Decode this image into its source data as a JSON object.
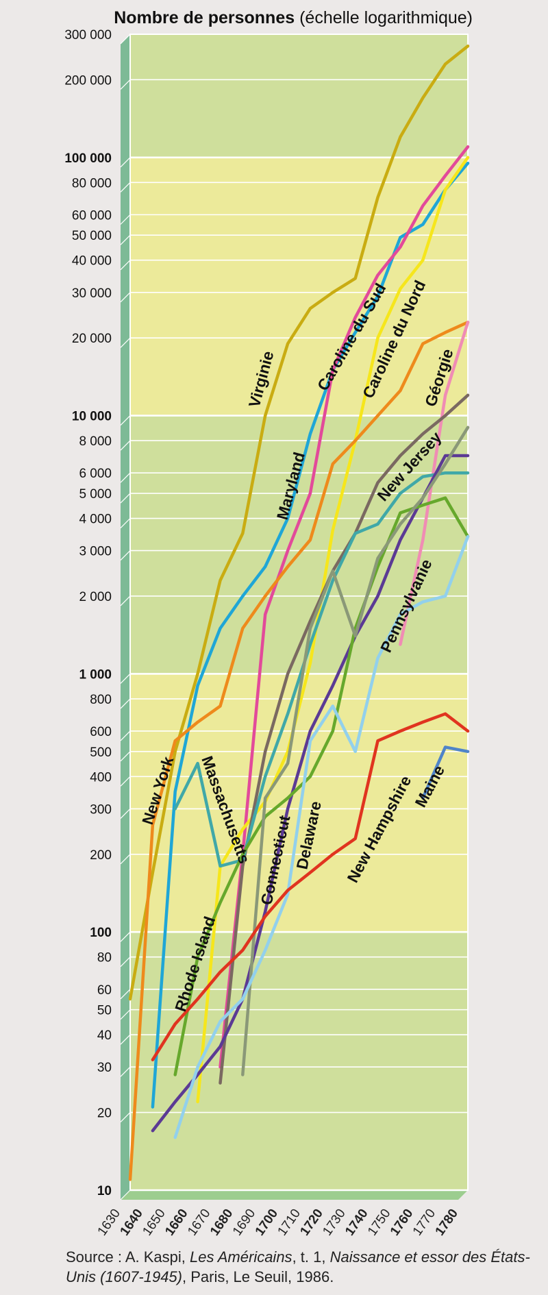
{
  "title": {
    "bold": "Nombre de personnes",
    "rest": " (échelle logarithmique)"
  },
  "source": {
    "p1": "Source : A. Kaspi, ",
    "i1": "Les Américains",
    "p2": ", t. 1, ",
    "i2": "Naissance et essor des États-Unis (1607-1945)",
    "p3": ", Paris, Le Seuil, 1986."
  },
  "colors": {
    "band_green": "#cfdf9c",
    "band_yellow": "#ecea9a",
    "side_wall": "#7dba96",
    "floor": "#9ccd8f"
  },
  "chart_data": {
    "type": "line",
    "title": "Nombre de personnes (échelle logarithmique)",
    "xlabel": "",
    "ylabel": "Nombre de personnes",
    "yscale": "log",
    "xlim": [
      1630,
      1780
    ],
    "ylim": [
      10,
      300000
    ],
    "x_ticks": [
      {
        "value": 1630,
        "label": "1630",
        "bold": false
      },
      {
        "value": 1640,
        "label": "1640",
        "bold": true
      },
      {
        "value": 1650,
        "label": "1650",
        "bold": false
      },
      {
        "value": 1660,
        "label": "1660",
        "bold": true
      },
      {
        "value": 1670,
        "label": "1670",
        "bold": false
      },
      {
        "value": 1680,
        "label": "1680",
        "bold": true
      },
      {
        "value": 1690,
        "label": "1690",
        "bold": false
      },
      {
        "value": 1700,
        "label": "1700",
        "bold": true
      },
      {
        "value": 1710,
        "label": "1710",
        "bold": false
      },
      {
        "value": 1720,
        "label": "1720",
        "bold": true
      },
      {
        "value": 1730,
        "label": "1730",
        "bold": false
      },
      {
        "value": 1740,
        "label": "1740",
        "bold": true
      },
      {
        "value": 1750,
        "label": "1750",
        "bold": false
      },
      {
        "value": 1760,
        "label": "1760",
        "bold": true
      },
      {
        "value": 1770,
        "label": "1770",
        "bold": false
      },
      {
        "value": 1780,
        "label": "1780",
        "bold": true
      }
    ],
    "y_ticks": [
      {
        "value": 10,
        "label": "10",
        "bold": true
      },
      {
        "value": 20,
        "label": "20",
        "bold": false
      },
      {
        "value": 30,
        "label": "30",
        "bold": false
      },
      {
        "value": 40,
        "label": "40",
        "bold": false
      },
      {
        "value": 50,
        "label": "50",
        "bold": false
      },
      {
        "value": 60,
        "label": "60",
        "bold": false
      },
      {
        "value": 80,
        "label": "80",
        "bold": false
      },
      {
        "value": 100,
        "label": "100",
        "bold": true
      },
      {
        "value": 200,
        "label": "200",
        "bold": false
      },
      {
        "value": 300,
        "label": "300",
        "bold": false
      },
      {
        "value": 400,
        "label": "400",
        "bold": false
      },
      {
        "value": 500,
        "label": "500",
        "bold": false
      },
      {
        "value": 600,
        "label": "600",
        "bold": false
      },
      {
        "value": 800,
        "label": "800",
        "bold": false
      },
      {
        "value": 1000,
        "label": "1 000",
        "bold": true
      },
      {
        "value": 2000,
        "label": "2 000",
        "bold": false
      },
      {
        "value": 3000,
        "label": "3 000",
        "bold": false
      },
      {
        "value": 4000,
        "label": "4 000",
        "bold": false
      },
      {
        "value": 5000,
        "label": "5 000",
        "bold": false
      },
      {
        "value": 6000,
        "label": "6 000",
        "bold": false
      },
      {
        "value": 8000,
        "label": "8 000",
        "bold": false
      },
      {
        "value": 10000,
        "label": "10 000",
        "bold": true
      },
      {
        "value": 20000,
        "label": "20 000",
        "bold": false
      },
      {
        "value": 30000,
        "label": "30 000",
        "bold": false
      },
      {
        "value": 40000,
        "label": "40 000",
        "bold": false
      },
      {
        "value": 50000,
        "label": "50 000",
        "bold": false
      },
      {
        "value": 60000,
        "label": "60 000",
        "bold": false
      },
      {
        "value": 80000,
        "label": "80 000",
        "bold": false
      },
      {
        "value": 100000,
        "label": "100 000",
        "bold": true
      },
      {
        "value": 200000,
        "label": "200 000",
        "bold": false
      },
      {
        "value": 300000,
        "label": "300 000",
        "bold": false
      }
    ],
    "series": [
      {
        "name": "Virginie",
        "color": "#c9ac12",
        "x": [
          1630,
          1640,
          1650,
          1660,
          1670,
          1680,
          1690,
          1700,
          1710,
          1720,
          1730,
          1740,
          1750,
          1760,
          1770,
          1780
        ],
        "values": [
          55,
          170,
          500,
          1000,
          2300,
          3500,
          10000,
          19000,
          26000,
          30000,
          34000,
          70000,
          120000,
          170000,
          230000,
          270000
        ]
      },
      {
        "name": "Maryland",
        "color": "#1fa6d6",
        "x": [
          1640,
          1650,
          1660,
          1670,
          1680,
          1690,
          1700,
          1710,
          1720,
          1730,
          1740,
          1750,
          1760,
          1770,
          1780
        ],
        "values": [
          21,
          350,
          900,
          1500,
          2000,
          2600,
          4000,
          8500,
          15000,
          21000,
          29000,
          49000,
          55000,
          75000,
          95000
        ]
      },
      {
        "name": "Caroline du Sud",
        "color": "#e24a9a",
        "x": [
          1670,
          1680,
          1690,
          1700,
          1710,
          1720,
          1730,
          1740,
          1750,
          1760,
          1770,
          1780
        ],
        "values": [
          30,
          200,
          1700,
          3000,
          5000,
          15000,
          24000,
          35000,
          45000,
          65000,
          85000,
          110000
        ]
      },
      {
        "name": "Caroline du Nord",
        "color": "#f6e61c",
        "x": [
          1660,
          1670,
          1680,
          1690,
          1700,
          1710,
          1720,
          1730,
          1740,
          1750,
          1760,
          1770,
          1780
        ],
        "values": [
          22,
          180,
          250,
          320,
          500,
          1100,
          3600,
          8000,
          20000,
          31000,
          40000,
          75000,
          100000
        ]
      },
      {
        "name": "New York",
        "color": "#ee8a1c",
        "x": [
          1630,
          1640,
          1650,
          1660,
          1670,
          1680,
          1690,
          1700,
          1710,
          1720,
          1730,
          1740,
          1750,
          1760,
          1770,
          1780
        ],
        "values": [
          11,
          260,
          550,
          650,
          750,
          1500,
          2000,
          2600,
          3300,
          6500,
          8000,
          10000,
          12500,
          19000,
          21000,
          23000
        ]
      },
      {
        "name": "Géorgie",
        "color": "#f08cb4",
        "x": [
          1750,
          1760,
          1770,
          1780
        ],
        "values": [
          1300,
          3300,
          12000,
          23000
        ]
      },
      {
        "name": "New Jersey",
        "color": "#7a6961",
        "x": [
          1670,
          1680,
          1690,
          1700,
          1710,
          1720,
          1730,
          1740,
          1750,
          1760,
          1770,
          1780
        ],
        "values": [
          26,
          180,
          500,
          1000,
          1600,
          2500,
          3500,
          5500,
          7000,
          8500,
          10000,
          12000
        ]
      },
      {
        "name": "Massachusetts",
        "color": "#40a8a8",
        "x": [
          1650,
          1660,
          1670,
          1680,
          1690,
          1700,
          1710,
          1720,
          1730,
          1740,
          1750,
          1760,
          1770,
          1780
        ],
        "values": [
          300,
          450,
          180,
          190,
          400,
          700,
          1300,
          2300,
          3500,
          3800,
          5000,
          5800,
          6000,
          6000
        ]
      },
      {
        "name": "Pennsylvanie",
        "color": "#5b3a94",
        "x": [
          1640,
          1650,
          1660,
          1670,
          1680,
          1690,
          1700,
          1710,
          1720,
          1730,
          1740,
          1750,
          1760,
          1770,
          1780
        ],
        "values": [
          17,
          22,
          28,
          36,
          55,
          120,
          300,
          600,
          900,
          1400,
          2000,
          3300,
          4800,
          7000,
          7000
        ]
      },
      {
        "name": "Rhode Island",
        "color": "#66a82c",
        "x": [
          1650,
          1660,
          1670,
          1680,
          1690,
          1700,
          1710,
          1720,
          1730,
          1740,
          1750,
          1760,
          1770,
          1780
        ],
        "values": [
          28,
          80,
          130,
          200,
          280,
          330,
          400,
          600,
          1500,
          2600,
          4200,
          4500,
          4800,
          3400
        ]
      },
      {
        "name": "Connecticut",
        "color": "#8a9878",
        "x": [
          1680,
          1690,
          1700,
          1710,
          1720,
          1730,
          1740,
          1750,
          1760,
          1770,
          1780
        ],
        "values": [
          28,
          330,
          450,
          1500,
          2500,
          1400,
          2800,
          3800,
          4800,
          6500,
          9000
        ]
      },
      {
        "name": "Delaware",
        "color": "#92d0ec",
        "x": [
          1650,
          1660,
          1670,
          1680,
          1690,
          1700,
          1710,
          1720,
          1730,
          1740,
          1750,
          1760,
          1770,
          1780
        ],
        "values": [
          16,
          30,
          45,
          55,
          85,
          140,
          550,
          750,
          500,
          1150,
          1700,
          1900,
          2000,
          3400
        ]
      },
      {
        "name": "New Hampshire",
        "color": "#e0341f",
        "x": [
          1640,
          1650,
          1660,
          1670,
          1680,
          1690,
          1700,
          1710,
          1720,
          1730,
          1740,
          1750,
          1760,
          1770,
          1780
        ],
        "values": [
          32,
          44,
          55,
          70,
          85,
          115,
          145,
          170,
          200,
          230,
          550,
          600,
          650,
          700,
          600
        ]
      },
      {
        "name": "Maine",
        "color": "#4f84c8",
        "x": [
          1760,
          1770,
          1780
        ],
        "values": [
          330,
          520,
          500
        ]
      }
    ],
    "series_labels": [
      {
        "name": "New York",
        "text": "New York"
      },
      {
        "name": "Massachusetts",
        "text": "Massachusetts"
      },
      {
        "name": "Rhode Island",
        "text": "Rhode Island"
      },
      {
        "name": "Connecticut",
        "text": "Connecticut"
      },
      {
        "name": "Delaware",
        "text": "Delaware"
      },
      {
        "name": "New Hampshire",
        "text": "New Hampshire"
      },
      {
        "name": "Maine",
        "text": "Maine"
      },
      {
        "name": "Pennsylvanie",
        "text": "Pennsylvanie"
      },
      {
        "name": "New Jersey",
        "text": "New Jersey"
      },
      {
        "name": "Géorgie",
        "text": "Géorgie"
      },
      {
        "name": "Caroline du Nord",
        "text": "Caroline du Nord"
      },
      {
        "name": "Caroline du Sud",
        "text": "Caroline du Sud"
      },
      {
        "name": "Maryland",
        "text": "Maryland"
      },
      {
        "name": "Virginie",
        "text": "Virginie"
      }
    ],
    "grid": true,
    "legend": "inline labels"
  }
}
